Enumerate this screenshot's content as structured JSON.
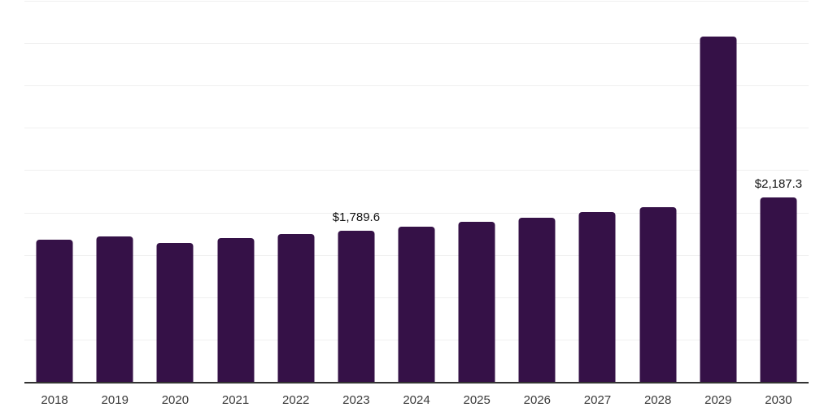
{
  "chart_data": {
    "type": "bar",
    "title": "",
    "xlabel": "",
    "ylabel": "",
    "legend": "none",
    "grid": true,
    "ylim": [
      0,
      4500
    ],
    "gridline_step": 500,
    "categories": [
      "2018",
      "2019",
      "2020",
      "2021",
      "2022",
      "2023",
      "2024",
      "2025",
      "2026",
      "2027",
      "2028",
      "2029",
      "2030"
    ],
    "values": [
      1690,
      1725,
      1650,
      1710,
      1755,
      1789.6,
      1840,
      1900,
      1950,
      2015,
      2070,
      4090,
      2187.3
    ],
    "data_labels": {
      "2023": "$1,789.6",
      "2030": "$2,187.3"
    },
    "colors": {
      "bar": "#351147",
      "gridline": "#f0f0f0",
      "axis_line": "#333333",
      "tick_label": "#3a3a3a",
      "value_label": "#111111"
    }
  }
}
